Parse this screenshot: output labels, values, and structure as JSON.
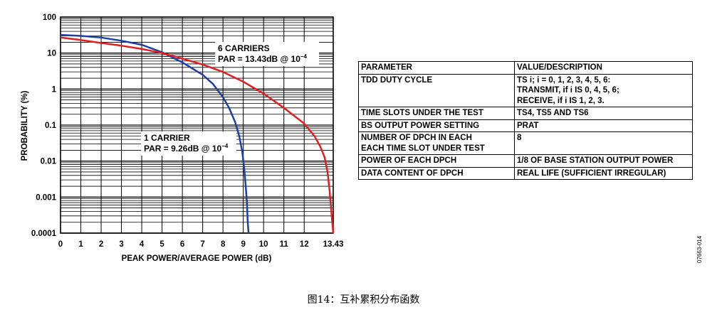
{
  "chart_data": {
    "type": "line",
    "xlabel": "PEAK POWER/AVERAGE POWER (dB)",
    "ylabel": "PROBABILITY (%)",
    "y_scale": "log",
    "xlim": [
      0,
      13.43
    ],
    "ylim": [
      0.0001,
      100
    ],
    "x_ticks": [
      "0",
      "1",
      "2",
      "3",
      "4",
      "5",
      "6",
      "7",
      "8",
      "9",
      "10",
      "11",
      "12",
      "13.43"
    ],
    "y_ticks": [
      "0.0001",
      "0.001",
      "0.01",
      "0.1",
      "1",
      "10",
      "100"
    ],
    "grid": true,
    "series": [
      {
        "name": "1 CARRIER",
        "color": "#1f3fa8",
        "x": [
          0,
          1,
          2,
          3,
          4,
          5,
          6,
          7,
          7.5,
          8,
          8.3,
          8.6,
          8.8,
          8.95,
          9.05,
          9.12,
          9.18,
          9.22,
          9.26
        ],
        "y": [
          32,
          30,
          27,
          22,
          17,
          10.5,
          5.5,
          2.5,
          1.4,
          0.6,
          0.3,
          0.12,
          0.05,
          0.018,
          0.006,
          0.002,
          0.0007,
          0.0002,
          0.0001
        ]
      },
      {
        "name": "6 CARRIERS",
        "color": "#e02020",
        "x": [
          0,
          1,
          2,
          3,
          4,
          5,
          6,
          7,
          8,
          9,
          10,
          11,
          12,
          12.5,
          12.8,
          13.0,
          13.15,
          13.25,
          13.32,
          13.38,
          13.43
        ],
        "y": [
          27,
          23,
          19,
          16,
          13,
          10,
          7,
          4.8,
          3,
          1.6,
          0.75,
          0.3,
          0.11,
          0.05,
          0.025,
          0.013,
          0.005,
          0.0015,
          0.0005,
          0.0002,
          0.0001
        ]
      }
    ],
    "annotations": [
      {
        "lines": [
          {
            "text": "6 CARRIERS"
          },
          {
            "text": "PAR = 13.43dB @ 10",
            "sup": "−4"
          }
        ]
      },
      {
        "lines": [
          {
            "text": "1 CARRIER"
          },
          {
            "text": "PAR = 9.26dB @ 10",
            "sup": "−4"
          }
        ]
      }
    ]
  },
  "table": {
    "header": [
      "PARAMETER",
      "VALUE/DESCRIPTION"
    ],
    "rows": [
      {
        "param": [
          "TDD DUTY CYCLE"
        ],
        "value": [
          "TS i; i = 0, 1, 2, 3, 4, 5, 6:",
          "TRANSMIT, if i IS 0, 4, 5, 6;",
          "RECEIVE, if i IS 1, 2, 3."
        ]
      },
      {
        "param": [
          "TIME SLOTS UNDER THE TEST"
        ],
        "value": [
          "TS4, TS5 AND TS6"
        ]
      },
      {
        "param": [
          "BS OUTPUT POWER SETTING"
        ],
        "value": [
          "PRAT"
        ]
      },
      {
        "param": [
          "NUMBER OF DPCH IN EACH",
          "EACH TIME SLOT UNDER TEST"
        ],
        "value": [
          "8"
        ]
      },
      {
        "param": [
          "POWER OF EACH DPCH"
        ],
        "value": [
          "1/8 OF BASE STATION OUTPUT POWER"
        ]
      },
      {
        "param": [
          "DATA CONTENT OF DPCH"
        ],
        "value": [
          "REAL LIFE (SUFFICIENT IRREGULAR)"
        ]
      }
    ]
  },
  "figure_id": "07663-014",
  "caption": "图14：互补累积分布函数"
}
